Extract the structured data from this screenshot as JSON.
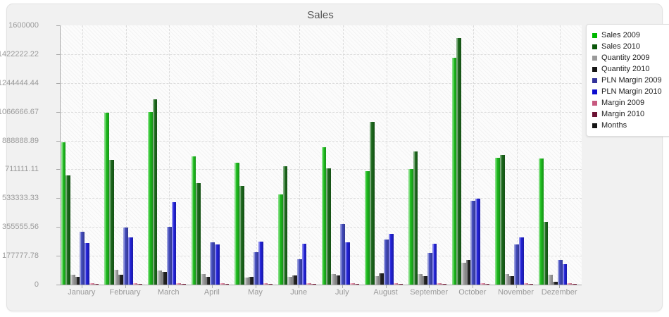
{
  "panel": {
    "title": "Sales"
  },
  "chart_data": {
    "type": "bar",
    "title": "Sales",
    "categories": [
      "January",
      "February",
      "March",
      "April",
      "May",
      "June",
      "July",
      "August",
      "September",
      "October",
      "November",
      "Dezember"
    ],
    "y_axis": {
      "min": 0,
      "max": 1600000,
      "tick_labels": [
        "1600000",
        "1422222.22",
        "1244444.44",
        "1066666.67",
        "888888.89",
        "711111.11",
        "533333.33",
        "355555.56",
        "177777.78",
        "0"
      ]
    },
    "grid": true,
    "legend_position": "right",
    "series": [
      {
        "name": "Sales 2009",
        "color": "#1fc11f",
        "legend_color": "#00b800",
        "values": [
          880000,
          1060000,
          1066000,
          793000,
          754000,
          558000,
          850000,
          702000,
          715000,
          1400000,
          783000,
          780000
        ]
      },
      {
        "name": "Sales 2010",
        "color": "#1c6b1c",
        "legend_color": "#0a570a",
        "values": [
          675000,
          770000,
          1143000,
          626000,
          610000,
          732000,
          719000,
          1004000,
          820000,
          1522000,
          802000,
          387000
        ]
      },
      {
        "name": "Quantity 2009",
        "color": "#a9a9a9",
        "legend_color": "#9a9a9a",
        "values": [
          61000,
          93000,
          87000,
          65000,
          44000,
          50000,
          65000,
          54000,
          65000,
          136000,
          67000,
          60000
        ]
      },
      {
        "name": "Quantity 2010",
        "color": "#242424",
        "legend_color": "#161616",
        "values": [
          48000,
          61000,
          78000,
          49000,
          48000,
          57000,
          57000,
          71000,
          54000,
          151000,
          52000,
          17000
        ]
      },
      {
        "name": "PLN Margin 2009",
        "color": "#444cc0",
        "legend_color": "#33339b",
        "values": [
          325000,
          352000,
          355000,
          260000,
          200000,
          157000,
          372000,
          279000,
          196000,
          519000,
          250000,
          151000
        ]
      },
      {
        "name": "PLN Margin 2010",
        "color": "#2323dd",
        "legend_color": "#0d0dcf",
        "values": [
          255000,
          293000,
          507000,
          250000,
          266000,
          253000,
          262000,
          311000,
          253000,
          529000,
          293000,
          125000
        ]
      },
      {
        "name": "Margin 2009",
        "color": "#ef92af",
        "legend_color": "#c7597f",
        "values": [
          9000,
          9000,
          9000,
          9000,
          9000,
          9000,
          9000,
          9000,
          9000,
          9000,
          9000,
          9000
        ]
      },
      {
        "name": "Margin 2010",
        "color": "#8d2144",
        "legend_color": "#6b1233",
        "values": [
          6000,
          6000,
          6000,
          6000,
          6000,
          6000,
          6000,
          6000,
          6000,
          6000,
          6000,
          6000
        ]
      },
      {
        "name": "Months",
        "color": "#161616",
        "legend_color": "#161616",
        "values": [
          1,
          2,
          3,
          4,
          5,
          6,
          7,
          8,
          9,
          10,
          11,
          12
        ]
      }
    ]
  }
}
